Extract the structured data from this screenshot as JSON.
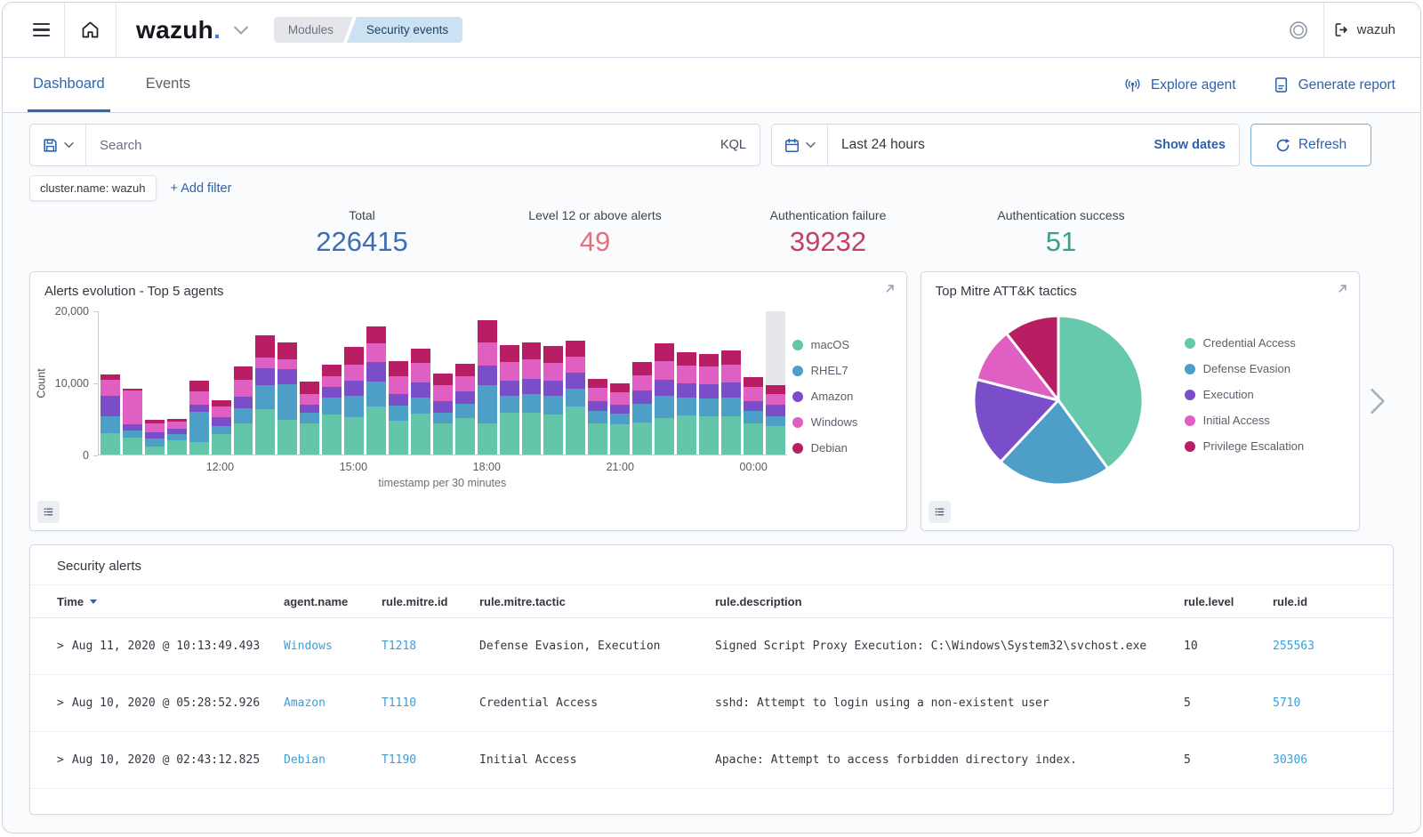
{
  "topbar": {
    "brand": "wazuh",
    "brand_dot": ".",
    "breadcrumbs": [
      "Modules",
      "Security events"
    ],
    "account_label": "wazuh"
  },
  "tabs": [
    {
      "label": "Dashboard"
    },
    {
      "label": "Events"
    }
  ],
  "header_actions": {
    "explore_agent": "Explore agent",
    "generate_report": "Generate report"
  },
  "toolbar": {
    "search_placeholder": "Search",
    "kql_label": "KQL",
    "time_range": "Last 24 hours",
    "show_dates_label": "Show dates",
    "refresh_label": "Refresh"
  },
  "filters": {
    "filter_chip": "cluster.name: wazuh",
    "add_filter_label": "+ Add filter"
  },
  "stats": [
    {
      "label": "Total",
      "value": "226415",
      "color": "#3d6eb4"
    },
    {
      "label": "Level 12 or above alerts",
      "value": "49",
      "color": "#e5707f"
    },
    {
      "label": "Authentication failure",
      "value": "39232",
      "color": "#c43f6d"
    },
    {
      "label": "Authentication success",
      "value": "51",
      "color": "#3ba186"
    }
  ],
  "icons": [
    "menu-icon",
    "home-icon",
    "brand-caret-icon",
    "spaces-icon",
    "logout-icon",
    "antenna-icon",
    "report-icon",
    "save-query-icon",
    "chevron-down-icon",
    "calendar-icon",
    "refresh-icon",
    "expand-icon",
    "legend-toggle-icon",
    "next-panels-icon",
    "sort-desc-icon",
    "expand-row-icon"
  ],
  "chart_data": [
    {
      "type": "bar",
      "stacked": true,
      "title": "Alerts evolution - Top 5 agents",
      "xlabel": "timestamp per 30 minutes",
      "ylabel": "Count",
      "ylim": [
        0,
        20000
      ],
      "yticks": [
        "0",
        "10,000",
        "20,000"
      ],
      "x_tick_labels": [
        {
          "index": 5,
          "label": "12:00"
        },
        {
          "index": 11,
          "label": "15:00"
        },
        {
          "index": 17,
          "label": "18:00"
        },
        {
          "index": 23,
          "label": "21:00"
        },
        {
          "index": 29,
          "label": "00:00"
        }
      ],
      "highlight_last_bar": true,
      "legend_position": "right",
      "series": [
        {
          "name": "macOS",
          "color": "#63c5aa",
          "values": [
            3000,
            2400,
            1100,
            2000,
            1700,
            2900,
            4400,
            6300,
            4900,
            4300,
            5600,
            5200,
            6700,
            4700,
            5700,
            4300,
            5100,
            4400,
            5800,
            5900,
            5600,
            6700,
            4400,
            4200,
            4500,
            5100,
            5500,
            5400,
            5300,
            4400,
            4000
          ]
        },
        {
          "name": "RHEL7",
          "color": "#4d9fc7",
          "values": [
            2300,
            900,
            1100,
            900,
            4300,
            1100,
            2100,
            3400,
            4900,
            1500,
            2400,
            3000,
            3500,
            2100,
            2300,
            1600,
            2000,
            5300,
            2400,
            2500,
            2600,
            2500,
            1700,
            1500,
            2600,
            3100,
            2500,
            2400,
            2700,
            1700,
            1400
          ]
        },
        {
          "name": "Amazon",
          "color": "#7b4ec9",
          "values": [
            2900,
            900,
            900,
            700,
            900,
            1200,
            1600,
            2300,
            2100,
            1200,
            1400,
            2100,
            2700,
            1600,
            2100,
            1600,
            1700,
            2700,
            2100,
            2200,
            2100,
            2200,
            1400,
            1300,
            1800,
            2300,
            2000,
            2000,
            2100,
            1400,
            1500
          ]
        },
        {
          "name": "Windows",
          "color": "#e05fc3",
          "values": [
            2300,
            4700,
            1300,
            1000,
            1900,
            1500,
            2300,
            1600,
            1400,
            1500,
            1500,
            2200,
            2600,
            2500,
            2700,
            2200,
            2100,
            3200,
            2600,
            2700,
            2500,
            2300,
            1800,
            1700,
            2200,
            2600,
            2400,
            2500,
            2500,
            1900,
            1600
          ]
        },
        {
          "name": "Debian",
          "color": "#b81e63",
          "values": [
            700,
            300,
            400,
            400,
            1500,
            900,
            1900,
            3000,
            2300,
            1700,
            1700,
            2500,
            2400,
            2100,
            2000,
            1600,
            1800,
            3200,
            2400,
            2300,
            2300,
            2200,
            1300,
            1200,
            1800,
            2400,
            1900,
            1800,
            2000,
            1400,
            1200
          ]
        }
      ]
    },
    {
      "type": "pie",
      "title": "Top Mitre ATT&K tactics",
      "labels": [
        "Credential Access",
        "Defense Evasion",
        "Execution",
        "Initial Access",
        "Privilege Escalation"
      ],
      "values": [
        40,
        22,
        17,
        10.5,
        10.5
      ],
      "colors": [
        "#66c9ad",
        "#4d9fc7",
        "#7b4ec9",
        "#e05fc3",
        "#b81e63"
      ],
      "legend_position": "right"
    }
  ],
  "table": {
    "title": "Security alerts",
    "columns": [
      "Time",
      "agent.name",
      "rule.mitre.id",
      "rule.mitre.tactic",
      "rule.description",
      "rule.level",
      "rule.id"
    ],
    "rows": [
      {
        "time": "Aug 11, 2020 @ 10:13:49.493",
        "agent": "Windows",
        "mitre_id": "T1218",
        "tactic": "Defense Evasion, Execution",
        "description": "Signed Script Proxy Execution: C:\\Windows\\System32\\svchost.exe",
        "level": "10",
        "rule_id": "255563"
      },
      {
        "time": "Aug 10, 2020 @ 05:28:52.926",
        "agent": "Amazon",
        "mitre_id": "T1110",
        "tactic": "Credential Access",
        "description": "sshd: Attempt to login using a non-existent user",
        "level": "5",
        "rule_id": "5710"
      },
      {
        "time": "Aug 10, 2020 @ 02:43:12.825",
        "agent": "Debian",
        "mitre_id": "T1190",
        "tactic": "Initial Access",
        "description": "Apache: Attempt to access forbidden directory index.",
        "level": "5",
        "rule_id": "30306"
      }
    ]
  }
}
